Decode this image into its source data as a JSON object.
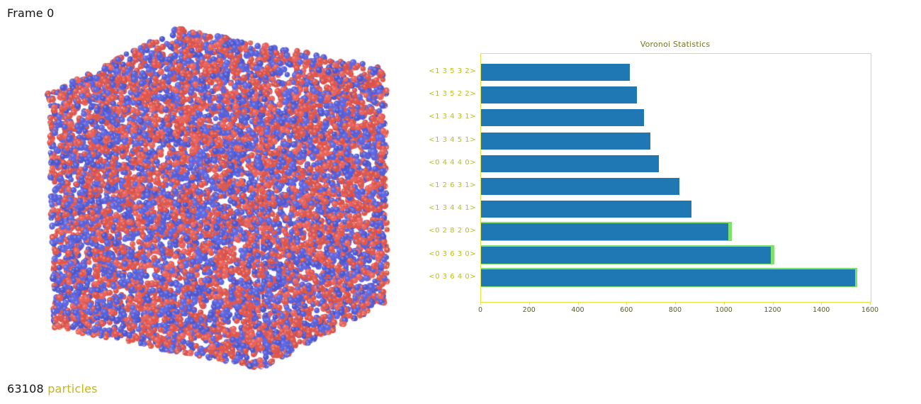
{
  "overlay": {
    "frame_label": "Frame 0",
    "particle_count": "63108",
    "particles_word": " particles"
  },
  "viewport": {
    "description": "3D simulation cell filled with red and blue particles",
    "red_color": "#e0574f",
    "blue_color": "#565ed6",
    "cell_edge_color": "#ffffff",
    "cell_dash_color": "#ffff9e"
  },
  "chart_data": {
    "type": "bar",
    "orientation": "horizontal",
    "title": "Voronoi Statistics",
    "categories": [
      "<1 3 5 3 2>",
      "<1 3 5 2 2>",
      "<1 3 4 3 1>",
      "<1 3 4 5 1>",
      "<0 4 4 4 0>",
      "<1 2 6 3 1>",
      "<1 3 4 4 1>",
      "<0 2 8 2 0>",
      "<0 3 6 3 0>",
      "<0 3 6 4 0>"
    ],
    "series": [
      {
        "name": "voronoi-index-count",
        "color": "#1f77b4",
        "values": [
          610,
          640,
          670,
          695,
          730,
          815,
          865,
          1015,
          1190,
          1535
        ]
      },
      {
        "name": "highlight-overlay",
        "color": "#7de26a",
        "values": [
          null,
          null,
          null,
          null,
          null,
          null,
          null,
          1030,
          1205,
          1545
        ]
      }
    ],
    "xlim": [
      0,
      1600
    ],
    "xticks": [
      0,
      200,
      400,
      600,
      800,
      1000,
      1200,
      1400,
      1600
    ],
    "grid": false,
    "legend": "none",
    "axis_color": "#e4e43e",
    "label_color": "#bcbe13",
    "tick_color": "#5c5c28",
    "title_color": "#76761e"
  }
}
